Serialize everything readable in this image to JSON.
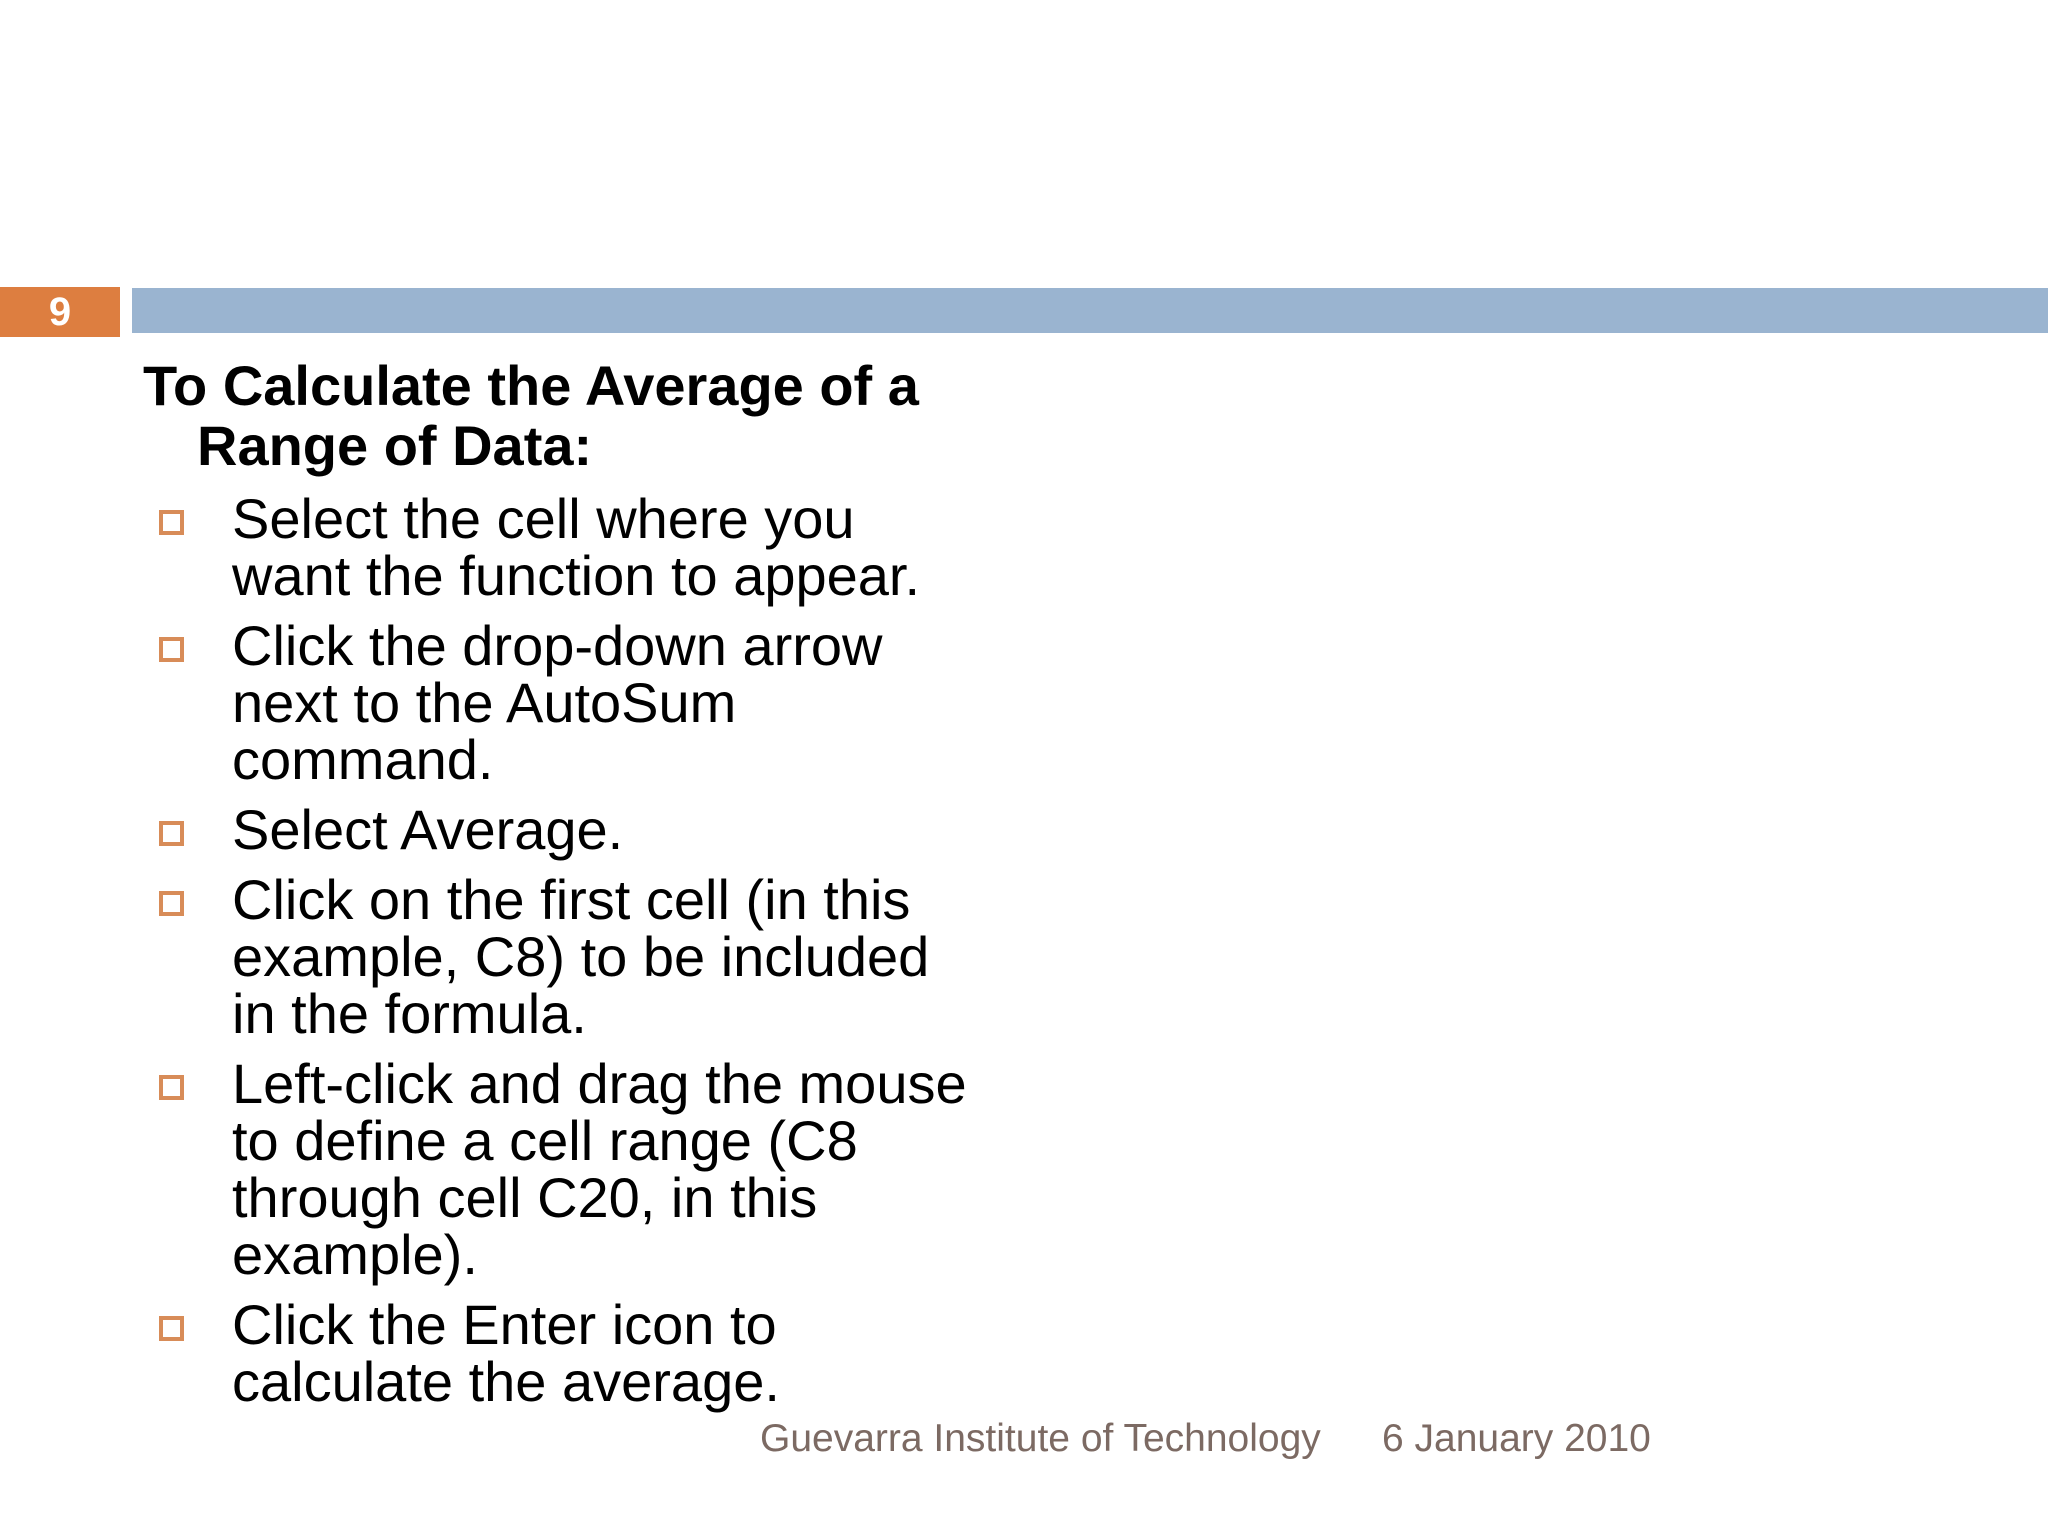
{
  "slide": {
    "page_number": "9",
    "title": "To Calculate the Average of a\nRange of Data:",
    "bullets": [
      {
        "text": "Select the cell where you\nwant the function to appear."
      },
      {
        "text": "Click the drop-down arrow\nnext to the AutoSum\ncommand."
      },
      {
        "text": "Select Average."
      },
      {
        "text": "Click on the first cell (in this\nexample, C8) to be included\nin the formula."
      },
      {
        "text": "Left-click and drag the mouse\nto define a cell range (C8\nthrough cell C20, in this\nexample)."
      },
      {
        "text": "Click the Enter icon to\ncalculate the average."
      }
    ],
    "footer": {
      "institution": "Guevarra Institute of Technology",
      "date": "6 January 2010"
    },
    "colors": {
      "page_number_box": "#dd7e40",
      "header_band": "#9ab4d0",
      "bullet_marker": "#d88c58",
      "footer_text": "#7c6a63",
      "body_text": "#000000",
      "background": "#ffffff"
    }
  }
}
